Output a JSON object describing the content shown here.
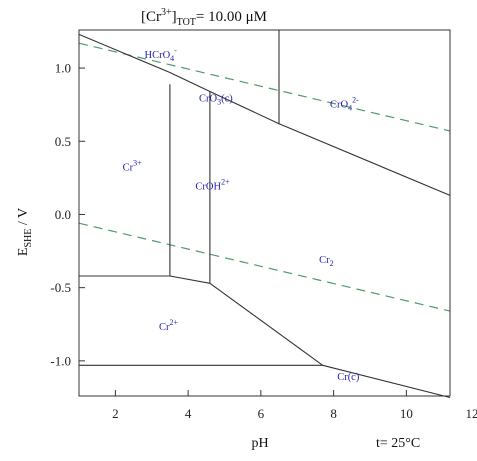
{
  "chart_data": {
    "type": "line",
    "title": "[Cr³⁺]TOT=   10.00 μM",
    "title_parts": {
      "species": "[Cr",
      "charge": "3+",
      "bracket": "]",
      "sub": "TOT",
      "value": "=   10.00 μM"
    },
    "xlabel": "pH",
    "ylabel_parts": {
      "main": "E",
      "sub": "SHE",
      "unit": " / V"
    },
    "temperature_note": "t= 25°C",
    "xlim": [
      1,
      11.2
    ],
    "ylim": [
      -1.24,
      1.26
    ],
    "x_ticks": [
      2,
      4,
      6,
      8,
      10,
      12
    ],
    "y_ticks": [
      1.0,
      0.5,
      0.0,
      -0.5,
      -1.0
    ],
    "y_tick_labels": [
      "1.0",
      "0.5",
      "0.0",
      "-0.5",
      "-1.0"
    ],
    "grid": false,
    "boundaries": [
      {
        "name": "HCrO4- / Cr(III) line",
        "points": [
          [
            1.0,
            1.23
          ],
          [
            3.5,
            0.97
          ],
          [
            4.6,
            0.84
          ],
          [
            6.5,
            0.62
          ],
          [
            11.2,
            0.13
          ]
        ]
      },
      {
        "name": "Cr3+ / CrOH2+",
        "points": [
          [
            3.5,
            0.89
          ],
          [
            3.5,
            -0.42
          ]
        ]
      },
      {
        "name": "CrOH2+ / Cr2O3(cr)",
        "points": [
          [
            4.6,
            0.84
          ],
          [
            4.6,
            -0.47
          ]
        ]
      },
      {
        "name": "HCrO4- / CrO4 2-",
        "points": [
          [
            6.5,
            1.26
          ],
          [
            6.5,
            0.62
          ]
        ]
      },
      {
        "name": "Cr3+ / Cr2+",
        "points": [
          [
            1.0,
            -0.42
          ],
          [
            3.5,
            -0.42
          ]
        ]
      },
      {
        "name": "CrOH2+ / Cr2+",
        "points": [
          [
            3.5,
            -0.42
          ],
          [
            4.6,
            -0.47
          ]
        ]
      },
      {
        "name": "Cr2O3 / Cr2+",
        "points": [
          [
            4.6,
            -0.47
          ],
          [
            7.7,
            -1.03
          ]
        ]
      },
      {
        "name": "Cr2+ / Cr(c)",
        "points": [
          [
            1.0,
            -1.03
          ],
          [
            7.7,
            -1.03
          ]
        ]
      },
      {
        "name": "Cr2O3 / Cr(c)",
        "points": [
          [
            7.7,
            -1.03
          ],
          [
            11.2,
            -1.25
          ]
        ]
      }
    ],
    "water_lines": [
      {
        "name": "O2/H2O",
        "points": [
          [
            1.0,
            1.17
          ],
          [
            11.2,
            0.57
          ]
        ]
      },
      {
        "name": "H2O/H2",
        "points": [
          [
            1.0,
            -0.06
          ],
          [
            11.2,
            -0.66
          ]
        ]
      }
    ],
    "species_labels": [
      {
        "main": "HCrO",
        "sub": "4",
        "sup": "-",
        "x": 2.8,
        "y": 1.07
      },
      {
        "main": "CrO",
        "sub": "4",
        "sup": "2-",
        "x": 7.9,
        "y": 0.73
      },
      {
        "main": "CrO",
        "sub": "3",
        "sup": "",
        "suffix": "(c)",
        "x": 4.3,
        "y": 0.77
      },
      {
        "main": "Cr",
        "sub": "",
        "sup": "3+",
        "suffix": "",
        "x": 2.2,
        "y": 0.3
      },
      {
        "main": "CrOH",
        "sub": "",
        "sup": "2+",
        "suffix": "",
        "x": 4.2,
        "y": 0.17
      },
      {
        "main": "Cr",
        "sub": "2",
        "sup": "",
        "suffix": "",
        "x": 7.6,
        "y": -0.33
      },
      {
        "main": "Cr",
        "sub": "",
        "sup": "2+",
        "suffix": "",
        "x": 3.2,
        "y": -0.79
      },
      {
        "main": "Cr(c)",
        "sub": "",
        "sup": "",
        "suffix": "",
        "x": 8.1,
        "y": -1.13
      }
    ],
    "colors": {
      "boundary": "#333333",
      "water": "#4f9a6a",
      "species": "#2222aa"
    }
  }
}
